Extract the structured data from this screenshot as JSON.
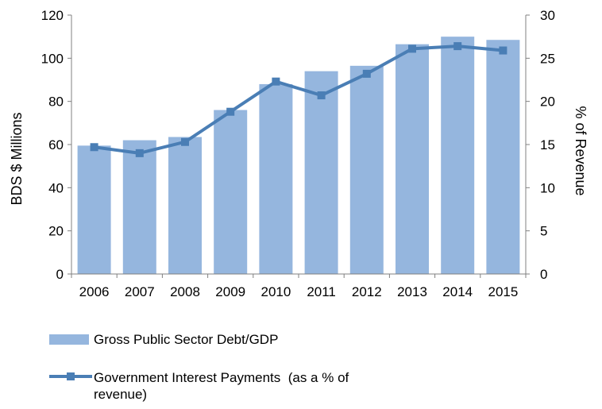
{
  "chart_data": {
    "type": "bar",
    "categories": [
      "2006",
      "2007",
      "2008",
      "2009",
      "2010",
      "2011",
      "2012",
      "2013",
      "2014",
      "2015"
    ],
    "series": [
      {
        "name": "Gross Public Sector Debt/GDP",
        "type": "bar",
        "axis": "left",
        "values": [
          59.5,
          62,
          63.5,
          76,
          88,
          94,
          96.5,
          106.5,
          110,
          108.5
        ]
      },
      {
        "name": "Government Interest Payments  (as a % of revenue)",
        "type": "line",
        "axis": "right",
        "marker": "square",
        "values": [
          14.7,
          14,
          15.3,
          18.8,
          22.3,
          20.7,
          23.2,
          26.1,
          26.4,
          25.9
        ]
      }
    ],
    "ylabel": "BDS $ Millions",
    "y2label": "% of Revenue",
    "ylim": [
      0,
      120
    ],
    "y2lim": [
      0,
      30
    ],
    "yticks": [
      "0",
      "20",
      "40",
      "60",
      "80",
      "100",
      "120"
    ],
    "y2ticks": [
      "0",
      "5",
      "10",
      "15",
      "20",
      "25",
      "30"
    ],
    "grid": false,
    "legend_position": "bottom",
    "colors": {
      "bar": "#95b6de",
      "line": "#4a7eb5",
      "axis": "#808080"
    }
  }
}
